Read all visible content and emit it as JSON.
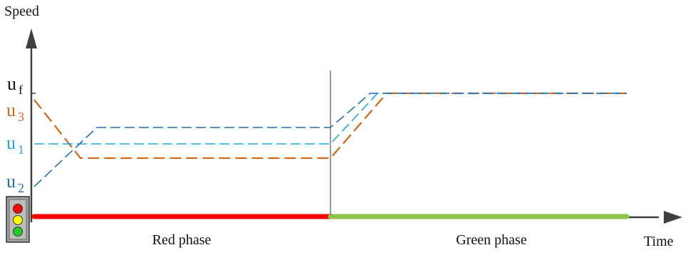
{
  "axes": {
    "y_label": "Speed",
    "x_label": "Time"
  },
  "y_tick_labels": [
    {
      "id": "uf",
      "base": "u",
      "sub": "f",
      "color": "#111111"
    },
    {
      "id": "u3",
      "base": "u",
      "sub": "3",
      "color": "#d2691e"
    },
    {
      "id": "u1",
      "base": "u",
      "sub": "1",
      "color": "#1fa8e0"
    },
    {
      "id": "u2",
      "base": "u",
      "sub": "2",
      "color": "#1f6fb5"
    }
  ],
  "phases": [
    {
      "label": "Red phase",
      "color": "#ff0000"
    },
    {
      "label": "Green phase",
      "color": "#8bc34a"
    }
  ],
  "traffic_light": {
    "lamps": [
      "#ff0000",
      "#ffff00",
      "#22cc22"
    ],
    "housing": "#a0a0a0"
  },
  "colors": {
    "axis": "#404040",
    "divider": "#333333",
    "vehicle_1": "#1fa8e0",
    "vehicle_2": "#1f6fb5",
    "vehicle_3": "#d2691e"
  }
}
